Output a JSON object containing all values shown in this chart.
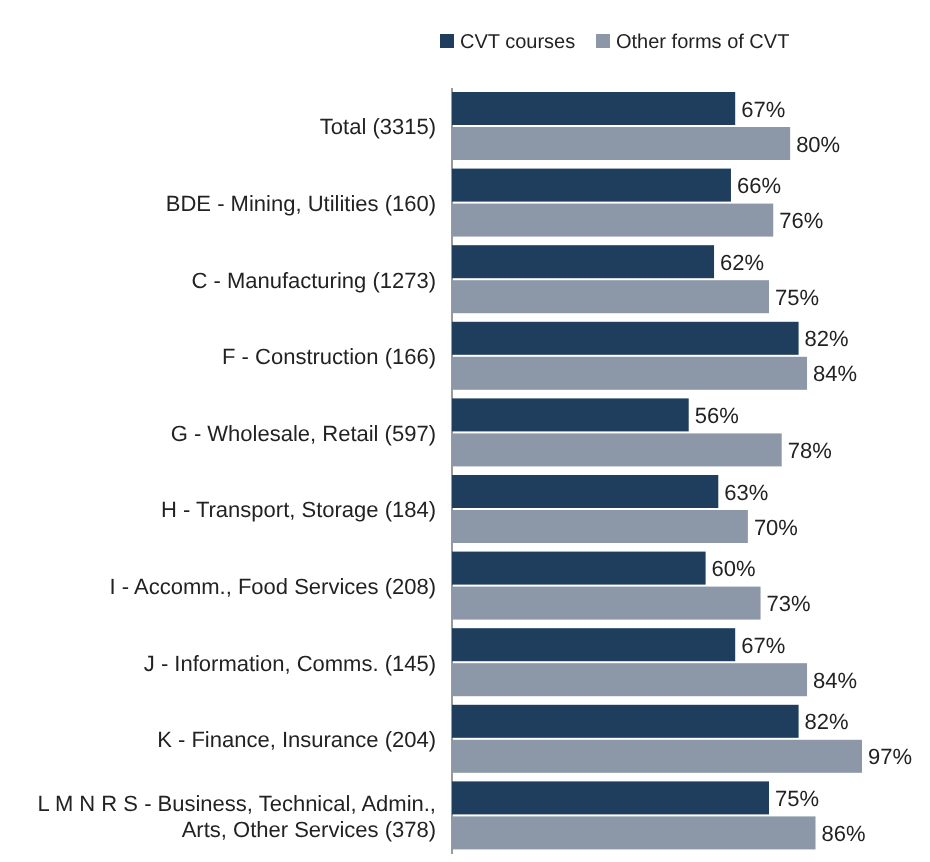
{
  "chart_data": {
    "type": "bar",
    "orientation": "horizontal",
    "legend": "top",
    "categories": [
      "Total (3315)",
      "BDE - Mining, Utilities (160)",
      "C - Manufacturing (1273)",
      "F - Construction (166)",
      "G - Wholesale, Retail (597)",
      "H - Transport, Storage (184)",
      "I - Accomm., Food Services (208)",
      "J - Information, Comms. (145)",
      "K - Finance, Insurance (204)",
      "L M N R S - Business, Technical, Admin., Arts, Other Services (378)"
    ],
    "series": [
      {
        "name": "CVT courses",
        "color": "#1f3d5c",
        "values": [
          67,
          66,
          62,
          82,
          56,
          63,
          60,
          67,
          82,
          75
        ],
        "value_labels": [
          "67%",
          "66%",
          "62%",
          "82%",
          "56%",
          "63%",
          "60%",
          "67%",
          "82%",
          "75%"
        ]
      },
      {
        "name": "Other forms of CVT",
        "color": "#8c98a8",
        "values": [
          80,
          76,
          75,
          84,
          78,
          70,
          73,
          84,
          97,
          86
        ],
        "value_labels": [
          "80%",
          "76%",
          "75%",
          "84%",
          "78%",
          "70%",
          "73%",
          "84%",
          "97%",
          "86%"
        ]
      }
    ]
  }
}
